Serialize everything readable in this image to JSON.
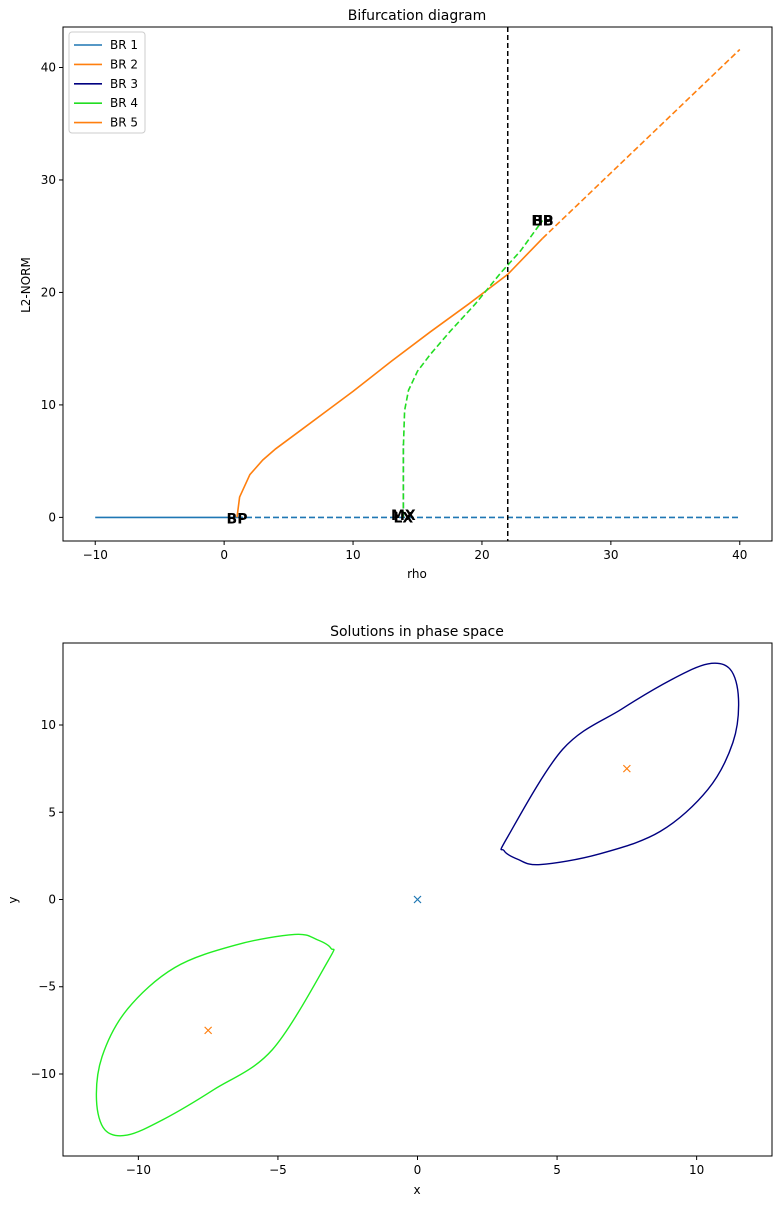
{
  "chart_data": [
    {
      "type": "line",
      "title": "Bifurcation diagram",
      "xlabel": "rho",
      "ylabel": "L2-NORM",
      "xlim": [
        -12.5,
        42.5
      ],
      "ylim": [
        -2.1,
        43.6
      ],
      "xticks": [
        -10,
        0,
        10,
        20,
        30,
        40
      ],
      "yticks": [
        0,
        10,
        20,
        30,
        40
      ],
      "grid": false,
      "legend_position": "top-left",
      "series": [
        {
          "name": "BR 1",
          "color": "#1f77b4",
          "segments": [
            {
              "style": "solid",
              "x": [
                -10,
                1
              ],
              "y": [
                0,
                0
              ]
            },
            {
              "style": "dashed",
              "x": [
                1,
                40
              ],
              "y": [
                0,
                0
              ]
            }
          ]
        },
        {
          "name": "BR 2",
          "color": "#ff7f0e",
          "segments": [
            {
              "style": "solid",
              "x": [
                1,
                1.2,
                2,
                3,
                4,
                6,
                8,
                10,
                13,
                16,
                19,
                22,
                24.7
              ],
              "y": [
                0,
                1.8,
                3.8,
                5.1,
                6.1,
                7.8,
                9.5,
                11.2,
                13.9,
                16.5,
                19.0,
                21.6,
                24.8
              ]
            },
            {
              "style": "dashed",
              "x": [
                24.7,
                40
              ],
              "y": [
                24.8,
                41.6
              ]
            }
          ]
        },
        {
          "name": "BR 3",
          "color": "#000080",
          "segments": [
            {
              "style": "dashed",
              "x": [
                13.9,
                13.9
              ],
              "y": [
                0,
                6.5
              ]
            }
          ]
        },
        {
          "name": "BR 4",
          "color": "#22dd22",
          "segments": [
            {
              "style": "dashed",
              "x": [
                13.9,
                13.9,
                14.0,
                14.3,
                15.0,
                16.0,
                17.5,
                19.5,
                21.5,
                23.0,
                24.7
              ],
              "y": [
                0,
                6.0,
                9.5,
                11.3,
                13.0,
                14.5,
                16.5,
                19.0,
                21.8,
                23.7,
                26.4
              ]
            }
          ]
        },
        {
          "name": "BR 5",
          "color": "#ff7f0e",
          "segments": []
        }
      ],
      "vline": {
        "x": 22,
        "color": "#000000",
        "style": "dashed"
      },
      "annotations": [
        {
          "text": "BP",
          "x": 1.0,
          "y": -0.1
        },
        {
          "text": "LX",
          "x": 13.9,
          "y": 0.0
        },
        {
          "text": "MX",
          "x": 13.9,
          "y": 0.2
        },
        {
          "text": "HB",
          "x": 24.7,
          "y": 26.4
        },
        {
          "text": "BP",
          "x": 24.7,
          "y": 26.4
        }
      ]
    },
    {
      "type": "line",
      "title": "Solutions in phase space",
      "xlabel": "x",
      "ylabel": "y",
      "xlim": [
        -12.7,
        12.7
      ],
      "ylim": [
        -14.7,
        14.7
      ],
      "xticks": [
        -10,
        -5,
        0,
        5,
        10
      ],
      "yticks": [
        -10,
        -5,
        0,
        5,
        10
      ],
      "ytick_labels": [
        "−10",
        "−5",
        "0",
        "5",
        "10"
      ],
      "xtick_labels": [
        "−10",
        "−5",
        "0",
        "5",
        "10"
      ],
      "grid": false,
      "series": [
        {
          "name": "",
          "color": "#000080",
          "kind": "closed-curve",
          "x": [
            11.5,
            11.2,
            10.4,
            9.1,
            7.3,
            5.2,
            3.2,
            3.1,
            3.6,
            4.4,
            6.5,
            8.7,
            10.4,
            11.3,
            11.5
          ],
          "y": [
            11.5,
            13.2,
            13.5,
            12.6,
            10.9,
            8.6,
            3.5,
            2.8,
            2.3,
            2.0,
            2.6,
            3.9,
            6.3,
            9.0,
            11.5
          ]
        },
        {
          "name": "",
          "color": "#22ee22",
          "kind": "closed-curve",
          "x": [
            -11.5,
            -11.2,
            -10.4,
            -9.1,
            -7.3,
            -5.2,
            -3.2,
            -3.1,
            -3.6,
            -4.4,
            -6.5,
            -8.7,
            -10.4,
            -11.3,
            -11.5
          ],
          "y": [
            -11.5,
            -13.2,
            -13.5,
            -12.6,
            -10.9,
            -8.6,
            -3.5,
            -2.8,
            -2.3,
            -2.0,
            -2.6,
            -3.9,
            -6.3,
            -9.0,
            -11.5
          ]
        }
      ],
      "markers": [
        {
          "x": 0,
          "y": 0,
          "color": "#1f77b4",
          "symbol": "x"
        },
        {
          "x": 7.5,
          "y": 7.5,
          "color": "#ff7f0e",
          "symbol": "x"
        },
        {
          "x": -7.5,
          "y": -7.5,
          "color": "#ff7f0e",
          "symbol": "x"
        }
      ]
    }
  ]
}
